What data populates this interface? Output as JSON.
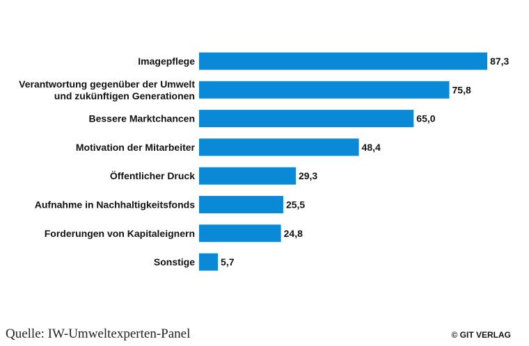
{
  "chart_data": {
    "type": "bar",
    "orientation": "horizontal",
    "categories": [
      [
        "Imagepflege"
      ],
      [
        "Verantwortung gegenüber der Umwelt",
        "und zukünftigen Generationen"
      ],
      [
        "Bessere Marktchancen"
      ],
      [
        "Motivation der Mitarbeiter"
      ],
      [
        "Öffentlicher Druck"
      ],
      [
        "Aufnahme in Nachhaltigkeitsfonds"
      ],
      [
        "Forderungen von Kapitaleignern"
      ],
      [
        "Sonstige"
      ]
    ],
    "values": [
      87.3,
      75.8,
      65.0,
      48.4,
      29.3,
      25.5,
      24.8,
      5.7
    ],
    "value_labels": [
      "87,3",
      "75,8",
      "65,0",
      "48,4",
      "29,3",
      "25,5",
      "24,8",
      "5,7"
    ],
    "xlim": [
      0,
      100
    ],
    "grid": false,
    "bar_color": "#0a8ad6"
  },
  "footer": {
    "source": "Quelle: IW-Umweltexperten-Panel",
    "credit": "© GIT VERLAG"
  }
}
